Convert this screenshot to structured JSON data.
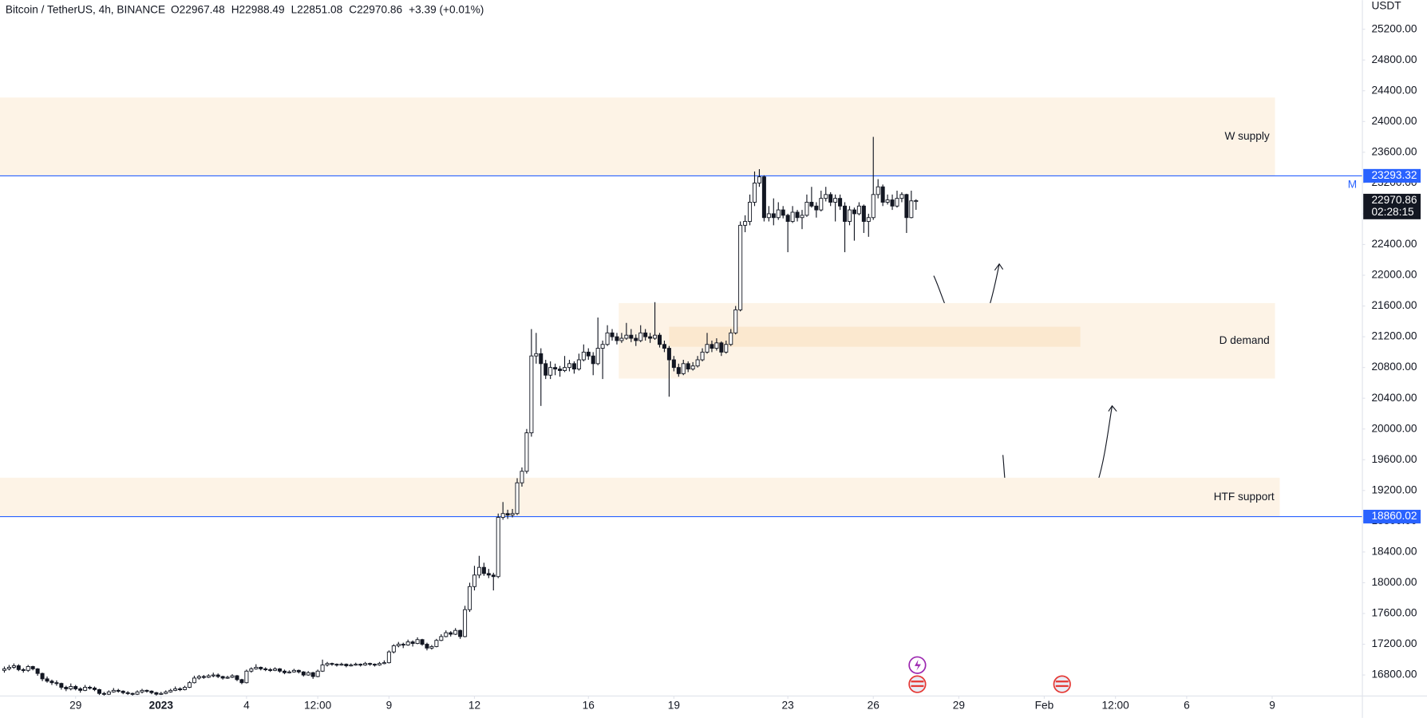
{
  "chart_data": {
    "type": "candlestick",
    "title": "Bitcoin / TetherUS, 4h, BINANCE",
    "legend": [
      "O22967.48",
      "H22988.49",
      "L22851.08",
      "C22970.86",
      "+3.39 (+0.01%)"
    ],
    "y_axis_label": "USDT",
    "countdown": "02:28:15",
    "line_marker": "M",
    "ylim": [
      16526,
      25579
    ],
    "yticks": [
      {
        "value": 16800,
        "label": "16800.00"
      },
      {
        "value": 17200,
        "label": "17200.00"
      },
      {
        "value": 17600,
        "label": "17600.00"
      },
      {
        "value": 18000,
        "label": "18000.00"
      },
      {
        "value": 18400,
        "label": "18400.00"
      },
      {
        "value": 18800,
        "label": "18800.00"
      },
      {
        "value": 19200,
        "label": "19200.00"
      },
      {
        "value": 19600,
        "label": "19600.00"
      },
      {
        "value": 20000,
        "label": "20000.00"
      },
      {
        "value": 20400,
        "label": "20400.00"
      },
      {
        "value": 20800,
        "label": "20800.00"
      },
      {
        "value": 21200,
        "label": "21200.00"
      },
      {
        "value": 21600,
        "label": "21600.00"
      },
      {
        "value": 22000,
        "label": "22000.00"
      },
      {
        "value": 22400,
        "label": "22400.00"
      },
      {
        "value": 22800,
        "label": "22800.00"
      },
      {
        "value": 23200,
        "label": "23200.00"
      },
      {
        "value": 23600,
        "label": "23600.00"
      },
      {
        "value": 24000,
        "label": "24000.00"
      },
      {
        "value": 24400,
        "label": "24400.00"
      },
      {
        "value": 24800,
        "label": "24800.00"
      },
      {
        "value": 25200,
        "label": "25200.00"
      }
    ],
    "xlim": [
      -0.92,
      286
    ],
    "xticks": [
      {
        "value": 15,
        "label": "29"
      },
      {
        "value": 33,
        "label": "2023"
      },
      {
        "value": 51,
        "label": "4"
      },
      {
        "value": 66,
        "label": "12:00"
      },
      {
        "value": 81,
        "label": "9"
      },
      {
        "value": 99,
        "label": "12"
      },
      {
        "value": 123,
        "label": "16"
      },
      {
        "value": 141,
        "label": "19"
      },
      {
        "value": 165,
        "label": "23"
      },
      {
        "value": 183,
        "label": "26"
      },
      {
        "value": 201,
        "label": "29"
      },
      {
        "value": 219,
        "label": "Feb"
      },
      {
        "value": 234,
        "label": "12:00"
      },
      {
        "value": 249,
        "label": "6"
      },
      {
        "value": 267,
        "label": "9"
      }
    ],
    "colors": {
      "up": "#ffffff",
      "down": "#131722",
      "outline": "#131722"
    },
    "zones": [
      {
        "label": "W supply",
        "x": [
          -0.92,
          267.6
        ],
        "y": [
          23293.32,
          24312
        ],
        "color": "#fdf3e6"
      },
      {
        "label": "D demand",
        "x": [
          129.4,
          267.6
        ],
        "y": [
          20656,
          21638
        ],
        "color": "#fdf3e6"
      },
      {
        "x": [
          140,
          226.6
        ],
        "y": [
          21070,
          21330
        ],
        "color": "#fbe8cf"
      },
      {
        "label": "HTF support",
        "x": [
          -0.92,
          268.6
        ],
        "y": [
          18860.02,
          19366
        ],
        "color": "#fdf3e6"
      }
    ],
    "lines": [
      {
        "value": 23293.32,
        "color": "#2962ff"
      },
      {
        "value": 18860.02,
        "color": "#2962ff"
      }
    ],
    "candles": [
      [
        16860,
        16910,
        16830,
        16880
      ],
      [
        16880,
        16930,
        16860,
        16900
      ],
      [
        16900,
        16950,
        16880,
        16920
      ],
      [
        16920,
        16940,
        16850,
        16870
      ],
      [
        16870,
        16890,
        16830,
        16860
      ],
      [
        16860,
        16930,
        16840,
        16910
      ],
      [
        16910,
        16920,
        16860,
        16880
      ],
      [
        16880,
        16890,
        16790,
        16820
      ],
      [
        16820,
        16830,
        16720,
        16750
      ],
      [
        16750,
        16780,
        16700,
        16720
      ],
      [
        16720,
        16740,
        16670,
        16700
      ],
      [
        16700,
        16730,
        16660,
        16690
      ],
      [
        16690,
        16700,
        16610,
        16640
      ],
      [
        16640,
        16660,
        16590,
        16620
      ],
      [
        16620,
        16690,
        16600,
        16650
      ],
      [
        16650,
        16670,
        16600,
        16620
      ],
      [
        16620,
        16640,
        16570,
        16600
      ],
      [
        16600,
        16670,
        16590,
        16640
      ],
      [
        16640,
        16660,
        16610,
        16630
      ],
      [
        16630,
        16650,
        16590,
        16610
      ],
      [
        16610,
        16620,
        16540,
        16560
      ],
      [
        16560,
        16580,
        16530,
        16550
      ],
      [
        16550,
        16600,
        16540,
        16580
      ],
      [
        16580,
        16630,
        16570,
        16600
      ],
      [
        16600,
        16620,
        16570,
        16590
      ],
      [
        16590,
        16600,
        16550,
        16570
      ],
      [
        16570,
        16590,
        16540,
        16560
      ],
      [
        16560,
        16570,
        16530,
        16550
      ],
      [
        16550,
        16600,
        16540,
        16580
      ],
      [
        16580,
        16620,
        16560,
        16600
      ],
      [
        16600,
        16610,
        16570,
        16590
      ],
      [
        16590,
        16600,
        16550,
        16570
      ],
      [
        16570,
        16580,
        16530,
        16550
      ],
      [
        16550,
        16580,
        16540,
        16560
      ],
      [
        16560,
        16600,
        16550,
        16580
      ],
      [
        16580,
        16620,
        16570,
        16600
      ],
      [
        16600,
        16650,
        16590,
        16620
      ],
      [
        16620,
        16640,
        16590,
        16610
      ],
      [
        16610,
        16660,
        16600,
        16640
      ],
      [
        16640,
        16720,
        16630,
        16700
      ],
      [
        16700,
        16790,
        16690,
        16760
      ],
      [
        16760,
        16800,
        16740,
        16780
      ],
      [
        16780,
        16800,
        16750,
        16770
      ],
      [
        16770,
        16810,
        16760,
        16790
      ],
      [
        16790,
        16830,
        16770,
        16800
      ],
      [
        16800,
        16820,
        16760,
        16780
      ],
      [
        16780,
        16790,
        16740,
        16760
      ],
      [
        16760,
        16790,
        16750,
        16770
      ],
      [
        16770,
        16810,
        16760,
        16790
      ],
      [
        16790,
        16800,
        16720,
        16740
      ],
      [
        16740,
        16750,
        16680,
        16700
      ],
      [
        16700,
        16870,
        16690,
        16850
      ],
      [
        16850,
        16900,
        16830,
        16880
      ],
      [
        16880,
        16940,
        16870,
        16900
      ],
      [
        16900,
        16910,
        16860,
        16880
      ],
      [
        16880,
        16900,
        16850,
        16870
      ],
      [
        16870,
        16890,
        16840,
        16860
      ],
      [
        16860,
        16900,
        16850,
        16880
      ],
      [
        16880,
        16890,
        16830,
        16850
      ],
      [
        16850,
        16870,
        16810,
        16830
      ],
      [
        16830,
        16860,
        16820,
        16840
      ],
      [
        16840,
        16880,
        16830,
        16860
      ],
      [
        16860,
        16870,
        16820,
        16840
      ],
      [
        16840,
        16850,
        16780,
        16800
      ],
      [
        16800,
        16850,
        16790,
        16830
      ],
      [
        16830,
        16840,
        16750,
        16780
      ],
      [
        16780,
        16870,
        16770,
        16850
      ],
      [
        16850,
        17000,
        16840,
        16930
      ],
      [
        16930,
        16970,
        16910,
        16950
      ],
      [
        16950,
        16960,
        16920,
        16940
      ],
      [
        16940,
        16950,
        16910,
        16930
      ],
      [
        16930,
        16960,
        16920,
        16940
      ],
      [
        16940,
        16950,
        16900,
        16920
      ],
      [
        16920,
        16950,
        16910,
        16930
      ],
      [
        16930,
        16960,
        16920,
        16940
      ],
      [
        16940,
        16950,
        16910,
        16930
      ],
      [
        16930,
        16970,
        16920,
        16950
      ],
      [
        16950,
        16960,
        16920,
        16940
      ],
      [
        16940,
        16950,
        16910,
        16930
      ],
      [
        16930,
        16970,
        16920,
        16950
      ],
      [
        16950,
        16990,
        16940,
        16960
      ],
      [
        16960,
        17120,
        16950,
        17100
      ],
      [
        17100,
        17200,
        17080,
        17180
      ],
      [
        17180,
        17230,
        17160,
        17200
      ],
      [
        17200,
        17220,
        17150,
        17190
      ],
      [
        17190,
        17260,
        17180,
        17230
      ],
      [
        17230,
        17250,
        17170,
        17210
      ],
      [
        17210,
        17290,
        17200,
        17260
      ],
      [
        17260,
        17270,
        17180,
        17200
      ],
      [
        17200,
        17220,
        17120,
        17150
      ],
      [
        17150,
        17190,
        17130,
        17170
      ],
      [
        17170,
        17270,
        17160,
        17250
      ],
      [
        17250,
        17330,
        17240,
        17300
      ],
      [
        17300,
        17380,
        17290,
        17350
      ],
      [
        17350,
        17370,
        17300,
        17330
      ],
      [
        17330,
        17410,
        17320,
        17380
      ],
      [
        17380,
        17390,
        17270,
        17300
      ],
      [
        17300,
        17700,
        17290,
        17650
      ],
      [
        17650,
        18000,
        17620,
        17950
      ],
      [
        17950,
        18220,
        17900,
        18100
      ],
      [
        18100,
        18350,
        18060,
        18200
      ],
      [
        18200,
        18260,
        18090,
        18120
      ],
      [
        18120,
        18180,
        18060,
        18100
      ],
      [
        18100,
        18130,
        17900,
        18080
      ],
      [
        18080,
        18900,
        18060,
        18850
      ],
      [
        18850,
        19050,
        18820,
        18900
      ],
      [
        18900,
        18950,
        18830,
        18880
      ],
      [
        18880,
        18960,
        18850,
        18900
      ],
      [
        18900,
        19360,
        18880,
        19300
      ],
      [
        19300,
        19500,
        19250,
        19450
      ],
      [
        19450,
        20000,
        19420,
        19950
      ],
      [
        19950,
        21300,
        19900,
        20950
      ],
      [
        20950,
        21250,
        20850,
        20980
      ],
      [
        20980,
        21050,
        20300,
        20850
      ],
      [
        20850,
        20900,
        20650,
        20700
      ],
      [
        20700,
        20880,
        20650,
        20800
      ],
      [
        20800,
        20850,
        20700,
        20780
      ],
      [
        20780,
        20820,
        20680,
        20760
      ],
      [
        20760,
        20950,
        20740,
        20800
      ],
      [
        20800,
        20900,
        20750,
        20850
      ],
      [
        20850,
        20880,
        20720,
        20780
      ],
      [
        20780,
        20980,
        20760,
        20900
      ],
      [
        20900,
        21100,
        20880,
        21000
      ],
      [
        21000,
        21050,
        20900,
        20950
      ],
      [
        20950,
        21000,
        20700,
        20850
      ],
      [
        20850,
        21450,
        20830,
        21050
      ],
      [
        21050,
        21150,
        20650,
        21100
      ],
      [
        21100,
        21350,
        21080,
        21250
      ],
      [
        21250,
        21300,
        21150,
        21200
      ],
      [
        21200,
        21250,
        21100,
        21150
      ],
      [
        21150,
        21250,
        21120,
        21180
      ],
      [
        21180,
        21380,
        21160,
        21220
      ],
      [
        21220,
        21300,
        21130,
        21180
      ],
      [
        21180,
        21230,
        21080,
        21150
      ],
      [
        21150,
        21350,
        21130,
        21250
      ],
      [
        21250,
        21300,
        21150,
        21200
      ],
      [
        21200,
        21250,
        21120,
        21180
      ],
      [
        21180,
        21650,
        21160,
        21220
      ],
      [
        21220,
        21250,
        21060,
        21100
      ],
      [
        21100,
        21150,
        21000,
        21050
      ],
      [
        21050,
        21080,
        20420,
        20900
      ],
      [
        20900,
        20950,
        20750,
        20800
      ],
      [
        20800,
        20850,
        20680,
        20720
      ],
      [
        20720,
        20900,
        20700,
        20850
      ],
      [
        20850,
        20880,
        20740,
        20780
      ],
      [
        20780,
        20870,
        20760,
        20820
      ],
      [
        20820,
        20950,
        20800,
        20900
      ],
      [
        20900,
        21050,
        20880,
        21000
      ],
      [
        21000,
        21250,
        20980,
        21100
      ],
      [
        21100,
        21150,
        21000,
        21050
      ],
      [
        21050,
        21180,
        21020,
        21120
      ],
      [
        21120,
        21140,
        20950,
        21000
      ],
      [
        21000,
        21150,
        20980,
        21100
      ],
      [
        21100,
        21300,
        21080,
        21250
      ],
      [
        21250,
        21600,
        21230,
        21550
      ],
      [
        21550,
        22700,
        21530,
        22650
      ],
      [
        22650,
        22780,
        22560,
        22700
      ],
      [
        22700,
        23050,
        22650,
        22950
      ],
      [
        22950,
        23350,
        22900,
        23200
      ],
      [
        23200,
        23380,
        23150,
        23280
      ],
      [
        23280,
        23300,
        22700,
        22750
      ],
      [
        22750,
        22900,
        22700,
        22800
      ],
      [
        22800,
        23000,
        22650,
        22750
      ],
      [
        22750,
        22950,
        22720,
        22850
      ],
      [
        22850,
        22900,
        22740,
        22780
      ],
      [
        22780,
        22800,
        22300,
        22700
      ],
      [
        22700,
        22900,
        22680,
        22820
      ],
      [
        22820,
        22850,
        22700,
        22750
      ],
      [
        22750,
        22850,
        22600,
        22780
      ],
      [
        22780,
        23050,
        22760,
        22950
      ],
      [
        22950,
        23150,
        22880,
        22900
      ],
      [
        22900,
        22950,
        22750,
        22850
      ],
      [
        22850,
        23100,
        22830,
        23000
      ],
      [
        23000,
        23150,
        22960,
        23050
      ],
      [
        23050,
        23080,
        22900,
        22950
      ],
      [
        22950,
        23050,
        22700,
        23000
      ],
      [
        23000,
        23050,
        22850,
        22900
      ],
      [
        22900,
        22950,
        22300,
        22700
      ],
      [
        22700,
        22900,
        22650,
        22850
      ],
      [
        22850,
        22880,
        22450,
        22800
      ],
      [
        22800,
        22950,
        22780,
        22900
      ],
      [
        22900,
        22920,
        22550,
        22700
      ],
      [
        22700,
        22800,
        22500,
        22750
      ],
      [
        22750,
        23800,
        22720,
        23050
      ],
      [
        23050,
        23250,
        23000,
        23150
      ],
      [
        23150,
        23180,
        22900,
        22950
      ],
      [
        22950,
        23050,
        22920,
        22980
      ],
      [
        22980,
        23050,
        22850,
        22900
      ],
      [
        22900,
        23100,
        22880,
        23000
      ],
      [
        23000,
        23080,
        22950,
        23050
      ],
      [
        23050,
        23060,
        22550,
        22750
      ],
      [
        22750,
        23100,
        22740,
        22967.47
      ],
      [
        22967.48,
        22988.49,
        22851.08,
        22970.86
      ]
    ]
  }
}
